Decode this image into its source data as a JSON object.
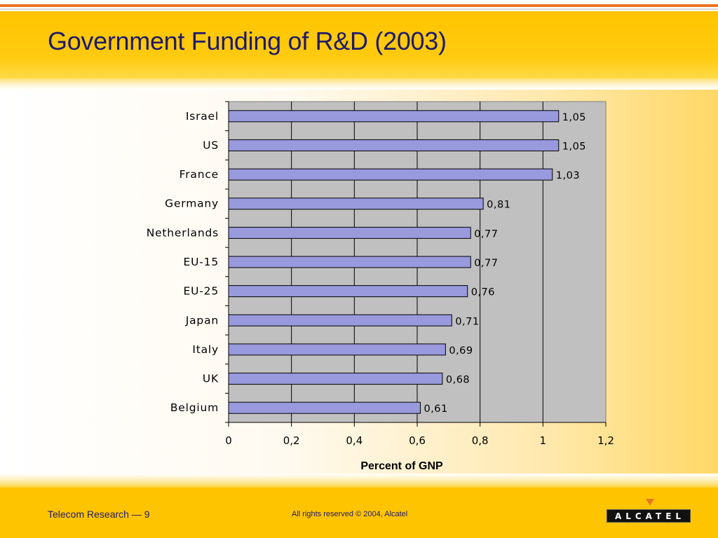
{
  "slide": {
    "title": "Government Funding of R&D (2003)",
    "footer_left": "Telecom Research — 9",
    "footer_center": "All rights reserved © 2004, Alcatel",
    "logo_text": "ALCATEL"
  },
  "colors": {
    "header": "#ffc400",
    "title_text": "#1f1a6b",
    "bar_fill": "#9999dd",
    "plot_bg": "#c0c0c0",
    "logo_arrow": "#e87722"
  },
  "chart_data": {
    "type": "bar",
    "orientation": "horizontal",
    "categories": [
      "Israel",
      "US",
      "France",
      "Germany",
      "Netherlands",
      "EU-15",
      "EU-25",
      "Japan",
      "Italy",
      "UK",
      "Belgium"
    ],
    "values": [
      1.05,
      1.05,
      1.03,
      0.81,
      0.77,
      0.77,
      0.76,
      0.71,
      0.69,
      0.68,
      0.61
    ],
    "value_labels": [
      "1,05",
      "1,05",
      "1,03",
      "0,81",
      "0,77",
      "0,77",
      "0,76",
      "0,71",
      "0,69",
      "0,68",
      "0,61"
    ],
    "xlabel": "Percent of GNP",
    "ylabel": "",
    "xlim": [
      0,
      1.2
    ],
    "xticks": [
      0,
      0.2,
      0.4,
      0.6,
      0.8,
      1,
      1.2
    ],
    "xtick_labels": [
      "0",
      "0,2",
      "0,4",
      "0,6",
      "0,8",
      "1",
      "1,2"
    ],
    "grid": "vertical",
    "legend": "none"
  }
}
